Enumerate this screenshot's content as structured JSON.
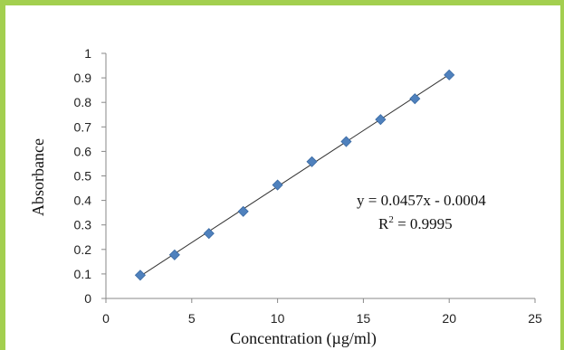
{
  "chart_data": {
    "type": "scatter",
    "xlabel": "Concentration (µg/ml)",
    "ylabel": "Absorbance",
    "xlim": [
      0,
      25
    ],
    "ylim": [
      0,
      1
    ],
    "x_ticks": [
      0,
      5,
      10,
      15,
      20,
      25
    ],
    "y_ticks": [
      0,
      0.1,
      0.2,
      0.3,
      0.4,
      0.5,
      0.6,
      0.7,
      0.8,
      0.9,
      1
    ],
    "series": [
      {
        "x": [
          2,
          4,
          6,
          8,
          10,
          12,
          14,
          16,
          18,
          20
        ],
        "y": [
          0.095,
          0.178,
          0.265,
          0.355,
          0.463,
          0.558,
          0.64,
          0.73,
          0.815,
          0.912
        ],
        "marker": "diamond",
        "color": "#4f81bd"
      }
    ],
    "trendline": {
      "slope": 0.0457,
      "intercept": -0.0004,
      "x_range": [
        2,
        20
      ],
      "color": "#333333"
    },
    "annotations": {
      "equation": "y = 0.0457x - 0.0004",
      "r_squared_base": "R",
      "r_squared_sup": "2",
      "r_squared_value": " = 0.9995"
    },
    "grid": false
  },
  "colors": {
    "frame_border": "#a3cf4f",
    "marker": "#4f81bd"
  }
}
